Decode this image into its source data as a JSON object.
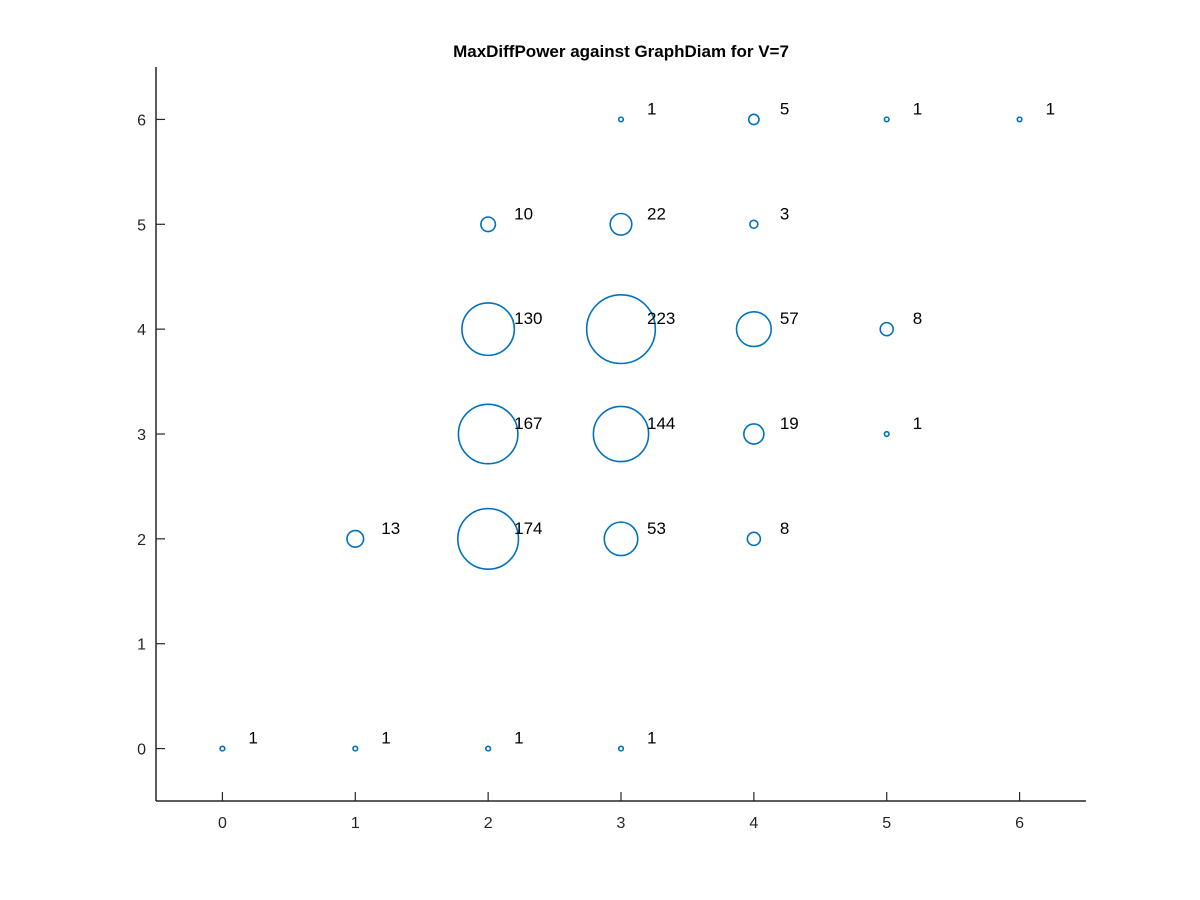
{
  "chart_data": {
    "type": "scatter",
    "title": "MaxDiffPower against GraphDiam for V=7",
    "xlabel": "",
    "ylabel": "",
    "xlim": [
      -0.5,
      6.5
    ],
    "ylim": [
      -0.5,
      6.5
    ],
    "xticks": [
      0,
      1,
      2,
      3,
      4,
      5,
      6
    ],
    "yticks": [
      0,
      1,
      2,
      3,
      4,
      5,
      6
    ],
    "xtick_labels": [
      "0",
      "1",
      "2",
      "3",
      "4",
      "5",
      "6"
    ],
    "ytick_labels": [
      "0",
      "1",
      "2",
      "3",
      "4",
      "5",
      "6"
    ],
    "grid": false,
    "marker": "circle, open, size proportional to count",
    "color": "#0072BD",
    "points": [
      {
        "x": 0,
        "y": 0,
        "count": 1,
        "label": "1"
      },
      {
        "x": 1,
        "y": 0,
        "count": 1,
        "label": "1"
      },
      {
        "x": 2,
        "y": 0,
        "count": 1,
        "label": "1"
      },
      {
        "x": 3,
        "y": 0,
        "count": 1,
        "label": "1"
      },
      {
        "x": 1,
        "y": 2,
        "count": 13,
        "label": "13"
      },
      {
        "x": 2,
        "y": 2,
        "count": 174,
        "label": "174"
      },
      {
        "x": 3,
        "y": 2,
        "count": 53,
        "label": "53"
      },
      {
        "x": 4,
        "y": 2,
        "count": 8,
        "label": "8"
      },
      {
        "x": 2,
        "y": 3,
        "count": 167,
        "label": "167"
      },
      {
        "x": 3,
        "y": 3,
        "count": 144,
        "label": "144"
      },
      {
        "x": 4,
        "y": 3,
        "count": 19,
        "label": "19"
      },
      {
        "x": 5,
        "y": 3,
        "count": 1,
        "label": "1"
      },
      {
        "x": 2,
        "y": 4,
        "count": 130,
        "label": "130"
      },
      {
        "x": 3,
        "y": 4,
        "count": 223,
        "label": "223"
      },
      {
        "x": 4,
        "y": 4,
        "count": 57,
        "label": "57"
      },
      {
        "x": 5,
        "y": 4,
        "count": 8,
        "label": "8"
      },
      {
        "x": 2,
        "y": 5,
        "count": 10,
        "label": "10"
      },
      {
        "x": 3,
        "y": 5,
        "count": 22,
        "label": "22"
      },
      {
        "x": 4,
        "y": 5,
        "count": 3,
        "label": "3"
      },
      {
        "x": 3,
        "y": 6,
        "count": 1,
        "label": "1"
      },
      {
        "x": 4,
        "y": 6,
        "count": 5,
        "label": "5"
      },
      {
        "x": 5,
        "y": 6,
        "count": 1,
        "label": "1"
      },
      {
        "x": 6,
        "y": 6,
        "count": 1,
        "label": "1"
      }
    ]
  }
}
